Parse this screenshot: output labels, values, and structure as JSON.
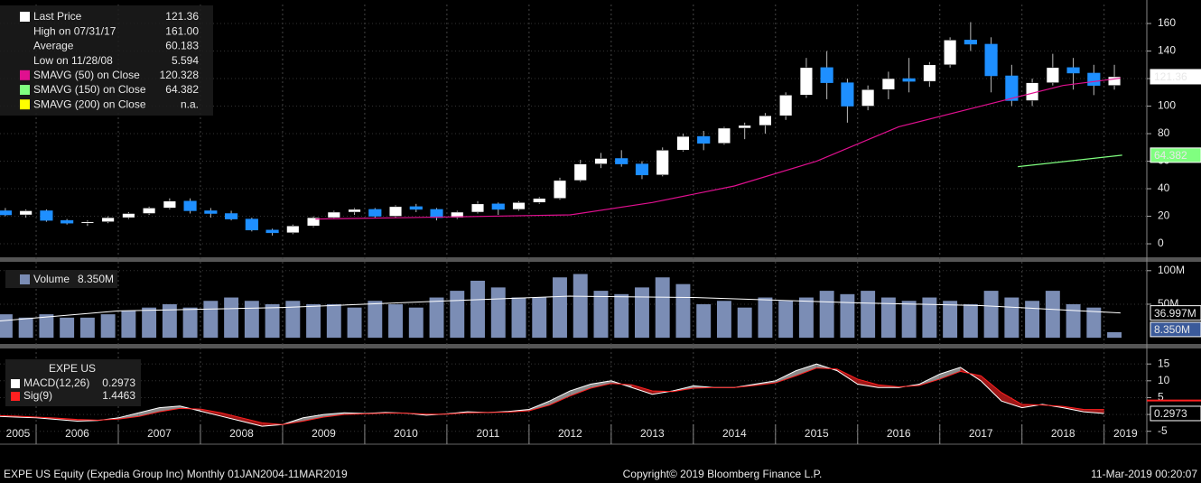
{
  "x_axis": {
    "xlim": [
      2005.56,
      2019.52
    ],
    "xticks": [
      2005,
      2006,
      2007,
      2008,
      2009,
      2010,
      2011,
      2012,
      2013,
      2014,
      2015,
      2016,
      2017,
      2018,
      2019
    ],
    "x": [
      2005.5,
      2005.75,
      2006,
      2006.25,
      2006.5,
      2006.75,
      2007,
      2007.25,
      2007.5,
      2007.75,
      2008,
      2008.25,
      2008.5,
      2008.75,
      2009,
      2009.25,
      2009.5,
      2009.75,
      2010,
      2010.25,
      2010.5,
      2010.75,
      2011,
      2011.25,
      2011.5,
      2011.75,
      2012,
      2012.25,
      2012.5,
      2012.75,
      2013,
      2013.25,
      2013.5,
      2013.75,
      2014,
      2014.25,
      2014.5,
      2014.75,
      2015,
      2015.25,
      2015.5,
      2015.75,
      2016,
      2016.25,
      2016.5,
      2016.75,
      2017,
      2017.25,
      2017.5,
      2017.75,
      2018,
      2018.25,
      2018.5,
      2018.75,
      2019
    ]
  },
  "chart_data": [
    {
      "type": "candlestick",
      "up_color": "#ffffff",
      "down_color": "#1e8fff",
      "open": [
        24,
        21,
        24,
        17,
        15,
        16,
        19,
        22,
        26,
        31,
        24,
        22,
        18,
        10,
        8,
        13,
        19,
        23,
        25,
        20,
        27,
        25,
        19,
        23,
        29,
        25,
        30,
        33,
        46,
        58,
        62,
        58,
        50,
        68,
        78,
        73,
        84,
        86,
        93,
        108,
        128,
        117,
        100,
        112,
        120,
        118,
        130,
        148,
        145,
        122,
        104,
        117,
        128,
        124,
        115
      ],
      "high": [
        26,
        25,
        25,
        18,
        17,
        20,
        23,
        27,
        33,
        33,
        26,
        24,
        19,
        11,
        14,
        20,
        24,
        26,
        26,
        28,
        29,
        26,
        24,
        31,
        30,
        31,
        34,
        48,
        61,
        66,
        68,
        60,
        70,
        80,
        82,
        85,
        88,
        95,
        110,
        135,
        140,
        120,
        115,
        125,
        135,
        132,
        150,
        161,
        150,
        130,
        120,
        138,
        135,
        130,
        130
      ],
      "low": [
        20,
        19,
        16,
        14,
        13,
        15,
        18,
        21,
        25,
        22,
        19,
        17,
        9,
        6,
        7,
        12,
        18,
        21,
        19,
        19,
        23,
        17,
        18,
        22,
        21,
        24,
        29,
        32,
        45,
        55,
        56,
        47,
        49,
        67,
        68,
        72,
        76,
        80,
        90,
        106,
        105,
        88,
        97,
        105,
        110,
        114,
        128,
        140,
        110,
        100,
        100,
        115,
        112,
        108,
        112
      ],
      "close": [
        21,
        24,
        17,
        15,
        16,
        19,
        22,
        26,
        31,
        24,
        22,
        18,
        10,
        8,
        13,
        19,
        23,
        25,
        20,
        27,
        25,
        19,
        23,
        29,
        25,
        30,
        33,
        46,
        58,
        62,
        58,
        50,
        68,
        78,
        73,
        84,
        86,
        93,
        108,
        128,
        117,
        100,
        112,
        120,
        118,
        130,
        148,
        145,
        122,
        104,
        117,
        128,
        124,
        115,
        121.36
      ],
      "overlays": [
        {
          "color": "#e0108f",
          "x": [
            2009.4,
            2010.5,
            2011.5,
            2012.5,
            2013.5,
            2014.5,
            2015.5,
            2016.5,
            2017.5,
            2018.5,
            2019.2
          ],
          "values": [
            18,
            19,
            20,
            21,
            30,
            42,
            60,
            85,
            100,
            115,
            120.328
          ]
        },
        {
          "color": "#80ff80",
          "x": [
            2017.95,
            2019.22
          ],
          "values": [
            56,
            64.382
          ]
        }
      ],
      "legend": [
        {
          "name": "Last Price",
          "value": "121.36",
          "color": "#ffffff"
        },
        {
          "name": "High on 07/31/17",
          "value": "161.00"
        },
        {
          "name": "Average",
          "value": "60.183"
        },
        {
          "name": "Low on 11/28/08",
          "value": "5.594"
        },
        {
          "name": "SMAVG (50)  on Close",
          "value": "120.328",
          "color": "#e0108f"
        },
        {
          "name": "SMAVG (150)  on Close",
          "value": "64.382",
          "color": "#80ff80"
        },
        {
          "name": "SMAVG (200)  on Close",
          "value": "n.a.",
          "color": "#ffff00"
        }
      ],
      "ylim": [
        -9.8,
        173.8
      ],
      "yticks": [
        0,
        20,
        40,
        60,
        80,
        100,
        120,
        140,
        160
      ]
    },
    {
      "type": "bar",
      "name": "Volume",
      "color": "#7b8db5",
      "values": [
        35,
        30,
        35,
        30,
        30,
        35,
        40,
        45,
        50,
        45,
        55,
        60,
        55,
        50,
        55,
        50,
        50,
        45,
        55,
        50,
        45,
        60,
        70,
        85,
        75,
        60,
        60,
        90,
        95,
        70,
        65,
        75,
        90,
        80,
        50,
        55,
        45,
        60,
        55,
        60,
        70,
        65,
        70,
        60,
        55,
        60,
        55,
        50,
        70,
        60,
        55,
        70,
        50,
        45,
        8.35
      ],
      "last_label": "8.350M",
      "ma": {
        "color": "#ffffff",
        "x": [
          2005.56,
          2007,
          2009,
          2011,
          2012.5,
          2014,
          2016,
          2017.5,
          2019.2
        ],
        "values": [
          25,
          40,
          45,
          55,
          62,
          60,
          52,
          48,
          36.997
        ],
        "last_label": "36.997M"
      },
      "ylim": [
        -7.9,
        110.5
      ],
      "yticks": [
        {
          "value": 50,
          "label": "50M"
        },
        {
          "value": 100,
          "label": "100M"
        }
      ]
    },
    {
      "type": "macd",
      "title": "EXPE US",
      "series": [
        {
          "name": "MACD(12,26)",
          "color": "#ffffff",
          "values": [
            -0.5,
            -0.8,
            -1,
            -1.5,
            -2,
            -1.8,
            -1,
            0.5,
            2,
            2.5,
            1,
            -0.5,
            -2,
            -3.5,
            -3,
            -1,
            0,
            0.5,
            0.3,
            0.6,
            0.4,
            -0.2,
            0.2,
            0.8,
            0.6,
            0.9,
            1.5,
            4,
            7,
            9,
            10,
            8,
            6,
            7,
            8.5,
            8,
            8,
            9,
            10,
            13,
            15,
            13,
            9,
            8,
            8,
            9,
            12,
            14,
            10,
            4,
            2,
            3,
            2,
            0.8,
            0.2973
          ]
        },
        {
          "name": "Sig(9)",
          "color": "#ff2020",
          "values": [
            -0.3,
            -0.5,
            -0.8,
            -1.1,
            -1.5,
            -1.7,
            -1.4,
            -0.6,
            0.8,
            1.8,
            1.6,
            0.5,
            -1,
            -2.5,
            -3,
            -2,
            -0.8,
            0,
            0.2,
            0.4,
            0.4,
            0.1,
            0.1,
            0.5,
            0.6,
            0.7,
            1.1,
            2.8,
            5.5,
            7.8,
            9.2,
            8.8,
            7,
            6.8,
            7.8,
            8,
            8,
            8.6,
            9.4,
            11.5,
            13.8,
            13.5,
            10.5,
            8.8,
            8.2,
            8.6,
            10.5,
            12.8,
            11.5,
            6.5,
            3,
            2.8,
            2.4,
            1.5,
            1.4463
          ]
        }
      ],
      "ylim": [
        -8.3,
        18
      ],
      "yticks": [
        -5,
        0,
        5,
        10,
        15
      ]
    }
  ],
  "footer": {
    "left": "EXPE US Equity (Expedia Group Inc)  Monthly 01JAN2004-11MAR2019",
    "center": "Copyright© 2019 Bloomberg Finance L.P.",
    "right": "11-Mar-2019 00:20:07"
  }
}
